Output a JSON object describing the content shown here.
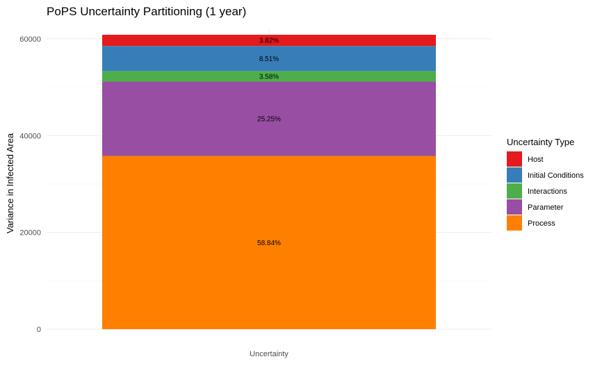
{
  "chart_data": {
    "type": "bar",
    "stacked": true,
    "title": "PoPS Uncertainty Partitioning (1 year)",
    "xlabel": "",
    "ylabel": "Variance in Infected Area",
    "categories": [
      "Uncertainty"
    ],
    "ylim": [
      0,
      62000
    ],
    "yticks": [
      0,
      20000,
      40000,
      60000
    ],
    "grid": true,
    "legend": {
      "title": "Uncertainty Type",
      "position": "right"
    },
    "series": [
      {
        "name": "Process",
        "values": [
          35800
        ],
        "label": "58.84%",
        "color": "#FF7F00"
      },
      {
        "name": "Parameter",
        "values": [
          15360
        ],
        "label": "25.25%",
        "color": "#984EA3"
      },
      {
        "name": "Interactions",
        "values": [
          2180
        ],
        "label": "3.58%",
        "color": "#4DAF4A"
      },
      {
        "name": "Initial Conditions",
        "values": [
          5180
        ],
        "label": "8.51%",
        "color": "#377EB8"
      },
      {
        "name": "Host",
        "values": [
          2320
        ],
        "label": "3.82%",
        "color": "#E41A1C"
      }
    ],
    "legend_order": [
      "Host",
      "Initial Conditions",
      "Interactions",
      "Parameter",
      "Process"
    ]
  }
}
